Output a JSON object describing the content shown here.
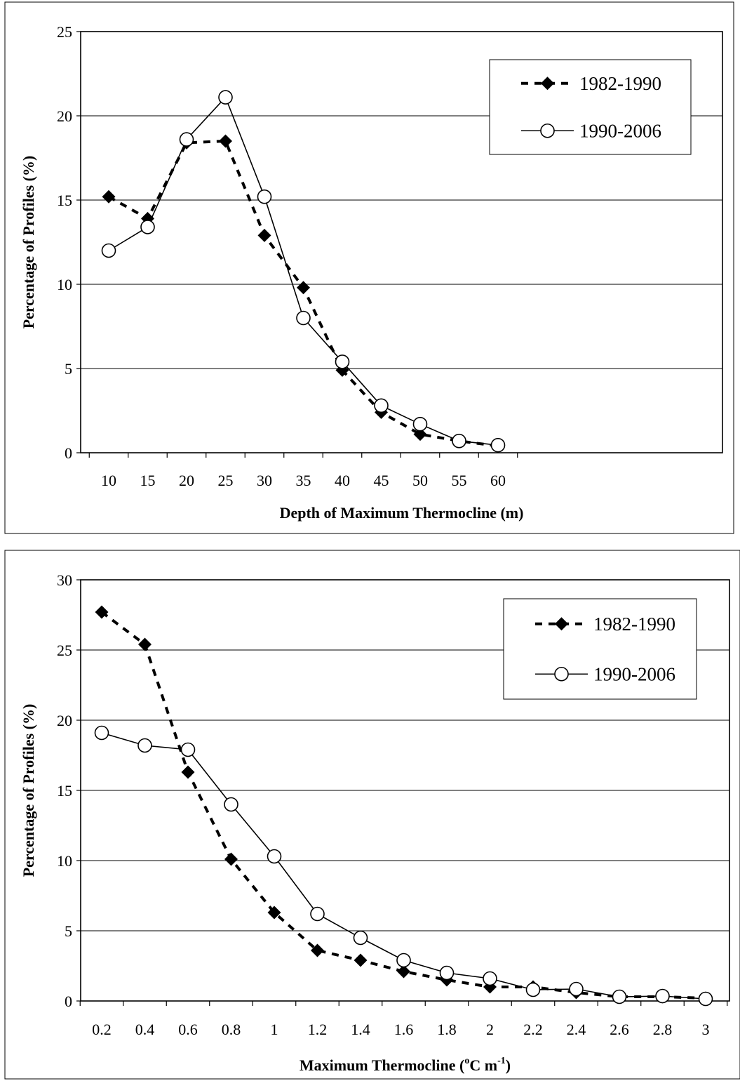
{
  "chart_data": [
    {
      "type": "line",
      "title": "",
      "xlabel": "Depth of Maximum Thermocline (m)",
      "ylabel": "Percentage of Profiles (%)",
      "ylim": [
        0,
        25
      ],
      "yticks": [
        0,
        5,
        10,
        15,
        20,
        25
      ],
      "categories": [
        "10",
        "15",
        "20",
        "25",
        "30",
        "35",
        "40",
        "45",
        "50",
        "55",
        "60"
      ],
      "grid": "horizontal",
      "legend_position": "top-right",
      "series": [
        {
          "name": "1982-1990",
          "style": "dashed-diamond",
          "color": "#000000",
          "values": [
            15.2,
            13.9,
            18.4,
            18.5,
            12.9,
            9.8,
            4.9,
            2.4,
            1.1,
            0.7,
            0.4
          ]
        },
        {
          "name": "1990-2006",
          "style": "solid-circle",
          "color": "#000000",
          "values": [
            12.0,
            13.4,
            18.6,
            21.1,
            15.2,
            8.0,
            5.4,
            2.8,
            1.7,
            0.7,
            0.45
          ]
        }
      ]
    },
    {
      "type": "line",
      "title": "",
      "xlabel_main": "Maximum Thermocline (",
      "xlabel_sup1": "o",
      "xlabel_mid": "C m",
      "xlabel_sup2": "-1",
      "xlabel_end": ")",
      "ylabel": "Percentage of Profiles (%)",
      "ylim": [
        0,
        30
      ],
      "yticks": [
        0,
        5,
        10,
        15,
        20,
        25,
        30
      ],
      "categories": [
        "0.2",
        "0.4",
        "0.6",
        "0.8",
        "1",
        "1.2",
        "1.4",
        "1.6",
        "1.8",
        "2",
        "2.2",
        "2.4",
        "2.6",
        "2.8",
        "3"
      ],
      "grid": "horizontal",
      "legend_position": "top-right",
      "series": [
        {
          "name": "1982-1990",
          "style": "dashed-diamond",
          "color": "#000000",
          "values": [
            27.7,
            25.4,
            16.3,
            10.1,
            6.3,
            3.6,
            2.9,
            2.1,
            1.5,
            1.0,
            1.0,
            0.6,
            0.3,
            0.3,
            0.2
          ]
        },
        {
          "name": "1990-2006",
          "style": "solid-circle",
          "color": "#000000",
          "values": [
            19.1,
            18.2,
            17.9,
            14.0,
            10.3,
            6.2,
            4.5,
            2.9,
            2.0,
            1.6,
            0.8,
            0.85,
            0.3,
            0.35,
            0.15
          ]
        }
      ]
    }
  ]
}
